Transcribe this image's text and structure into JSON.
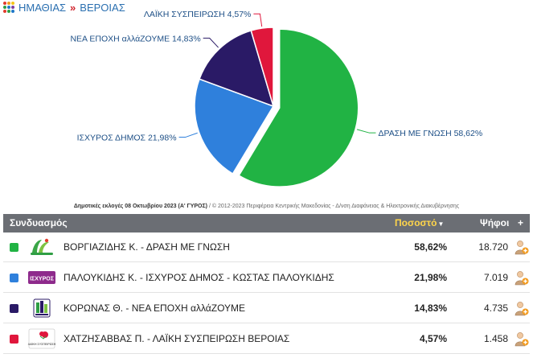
{
  "breadcrumb": {
    "region": "ΗΜΑΘΙΑΣ",
    "separator": "»",
    "municipality": "ΒΕΡΟΙΑΣ",
    "logo_colors": [
      "#e23b2e",
      "#f29a1d",
      "#f5c518",
      "#2f9e44",
      "#1f78c8",
      "#7b3fa0",
      "#e23b2e",
      "#2f9e44",
      "#1f78c8"
    ]
  },
  "chart_data": {
    "type": "pie",
    "slices": [
      {
        "label": "ΔΡΑΣΗ ΜΕ ΓΝΩΣΗ 58,62%",
        "value": 58.62,
        "color": "#21b344"
      },
      {
        "label": "ΙΣΧΥΡΟΣ ΔΗΜΟΣ 21,98%",
        "value": 21.98,
        "color": "#2f80dc"
      },
      {
        "label": "ΝΕΑ ΕΠΟΧΗ αλλάΖΟΥΜΕ 14,83%",
        "value": 14.83,
        "color": "#2a1a66"
      },
      {
        "label": "ΛΑΪΚΗ ΣΥΣΠΕΙΡΩΣΗ 4,57%",
        "value": 4.57,
        "color": "#e0173c"
      }
    ],
    "exploded_slice": "ΔΡΑΣΗ ΜΕ ΓΝΩΣΗ 58,62%",
    "label_color": "#1d4f86"
  },
  "credits": {
    "election": "Δημοτικές εκλογές 08 Οκτωβρίου 2023 (Α' ΓΥΡΟΣ)",
    "rest": " / © 2012-2023 Περιφέρεια Κεντρικής Μακεδονίας - Δ/νση Διαφάνειας & Ηλεκτρονικής Διακυβέρνησης"
  },
  "table": {
    "headers": {
      "name": "Συνδυασμός",
      "pct": "Ποσοστό",
      "sort_arrow": "▼",
      "votes": "Ψήφοι",
      "plus": "+"
    },
    "rows": [
      {
        "color": "#21b344",
        "name": "ΒΟΡΓΙΑΖΙΔΗΣ Κ. - ΔΡΑΣΗ ΜΕ ΓΝΩΣΗ",
        "pct": "58,62%",
        "votes": "18.720",
        "logo": "drasi"
      },
      {
        "color": "#2f80dc",
        "name": "ΠΑΛΟΥΚΙΔΗΣ Κ. - ΙΣΧΥΡΟΣ ΔΗΜΟΣ - ΚΩΣΤΑΣ ΠΑΛΟΥΚΙΔΗΣ",
        "pct": "21,98%",
        "votes": "7.019",
        "logo": "ischyros",
        "logo_text": "ΙΣΧΥΡΟΣ"
      },
      {
        "color": "#2a1a66",
        "name": "ΚΟΡΩΝΑΣ Θ. - ΝΕΑ ΕΠΟΧΗ αλλάΖΟΥΜΕ",
        "pct": "14,83%",
        "votes": "4.735",
        "logo": "nea-epochi"
      },
      {
        "color": "#e0173c",
        "name": "ΧΑΤΖΗΣΑΒΒΑΣ Π. - ΛΑΪΚΗ ΣΥΣΠΕΙΡΩΣΗ ΒΕΡΟΙΑΣ",
        "pct": "4,57%",
        "votes": "1.458",
        "logo": "laiki",
        "logo_text": "ΛΑΪΚΗ ΣΥΣΠΕΙΡΩΣΗ"
      }
    ]
  }
}
